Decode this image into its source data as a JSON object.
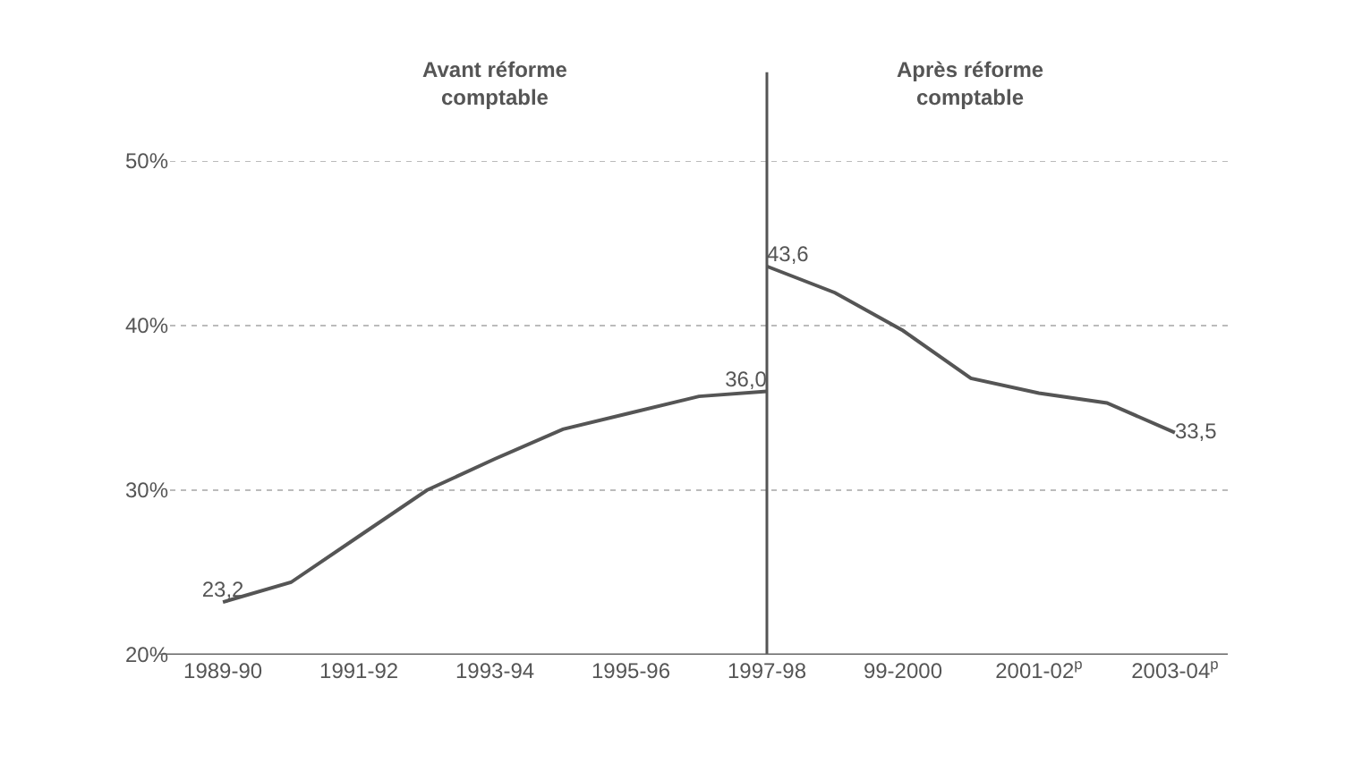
{
  "chart_data": {
    "type": "line",
    "categories": [
      "1989-90",
      null,
      "1991-92",
      null,
      "1993-94",
      null,
      "1995-96",
      null,
      "1997-98",
      null,
      "99-2000",
      null,
      "2001-02$^{p}$",
      null,
      "2003-04$^{p}$"
    ],
    "series": [
      {
        "color": "#555555",
        "values": [
          23.2,
          24.4,
          27.2,
          30.0,
          31.9,
          33.7,
          34.7,
          35.7,
          36.0,
          null,
          null,
          null,
          null,
          null,
          null
        ],
        "value_labels": [
          "23,2",
          null,
          null,
          null,
          null,
          null,
          null,
          null,
          "36,0",
          null,
          null,
          null,
          null,
          null,
          null
        ]
      },
      {
        "color": "#555555",
        "values": [
          null,
          null,
          null,
          null,
          null,
          null,
          null,
          null,
          43.6,
          42.0,
          39.7,
          36.8,
          35.9,
          35.3,
          33.5
        ],
        "value_labels": [
          null,
          null,
          null,
          null,
          null,
          null,
          null,
          null,
          "43,6",
          null,
          null,
          null,
          null,
          null,
          "33,5"
        ]
      }
    ],
    "ylim": [
      20,
      50
    ],
    "yticks": [
      {
        "value": 20,
        "label": "20%"
      },
      {
        "value": 30,
        "label": "30%"
      },
      {
        "value": 40,
        "label": "40%"
      },
      {
        "value": 50,
        "label": "50%"
      }
    ],
    "grid": "y",
    "marker": "none",
    "line_style": "solid",
    "ref_lines": [
      {
        "axis": "x",
        "value": "1997-98",
        "color": "#555555"
      }
    ],
    "annotations": [
      "Avant réforme comptable",
      "Après réforme comptable"
    ]
  }
}
